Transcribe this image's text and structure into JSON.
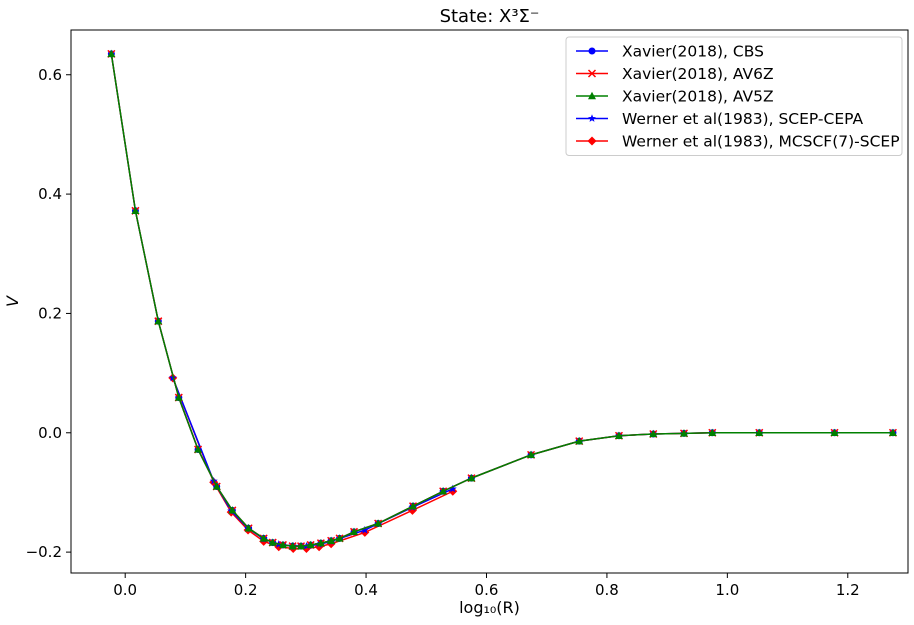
{
  "chart_data": {
    "type": "line",
    "title": "State: X³Σ⁻",
    "xlabel": "log₁₀(R)",
    "ylabel": "V",
    "xlim": [
      -0.09,
      1.3
    ],
    "ylim": [
      -0.235,
      0.675
    ],
    "xticks": [
      0.0,
      0.2,
      0.4,
      0.6,
      0.8,
      1.0,
      1.2
    ],
    "xtick_labels": [
      "0.0",
      "0.2",
      "0.4",
      "0.6",
      "0.8",
      "1.0",
      "1.2"
    ],
    "yticks": [
      -0.2,
      0.0,
      0.2,
      0.4,
      0.6
    ],
    "ytick_labels": [
      "−0.2",
      "0.0",
      "0.2",
      "0.4",
      "0.6"
    ],
    "grid": false,
    "legend_position": "top-right",
    "series": [
      {
        "name": "Xavier(2018), CBS",
        "color": "#0000ff",
        "marker": "circle",
        "x": [
          -0.023,
          0.017,
          0.055,
          0.089,
          0.121,
          0.152,
          0.178,
          0.205,
          0.23,
          0.245,
          0.262,
          0.278,
          0.292,
          0.308,
          0.325,
          0.342,
          0.356,
          0.38,
          0.42,
          0.478,
          0.528,
          0.575,
          0.674,
          0.754,
          0.82,
          0.877,
          0.928,
          0.975,
          1.053,
          1.178,
          1.275
        ],
        "y": [
          0.635,
          0.372,
          0.187,
          0.059,
          -0.028,
          -0.09,
          -0.13,
          -0.16,
          -0.177,
          -0.184,
          -0.188,
          -0.19,
          -0.19,
          -0.188,
          -0.185,
          -0.181,
          -0.177,
          -0.166,
          -0.152,
          -0.123,
          -0.098,
          -0.076,
          -0.037,
          -0.014,
          -0.005,
          -0.002,
          -0.001,
          0.0,
          0.0,
          0.0,
          0.0
        ]
      },
      {
        "name": "Xavier(2018), AV6Z",
        "color": "#ff0000",
        "marker": "x",
        "x": [
          -0.023,
          0.017,
          0.055,
          0.089,
          0.121,
          0.152,
          0.178,
          0.205,
          0.23,
          0.245,
          0.262,
          0.278,
          0.292,
          0.308,
          0.325,
          0.342,
          0.356,
          0.38,
          0.42,
          0.478,
          0.528,
          0.575,
          0.674,
          0.754,
          0.82,
          0.877,
          0.928,
          0.975,
          1.053,
          1.178,
          1.275
        ],
        "y": [
          0.635,
          0.372,
          0.187,
          0.059,
          -0.028,
          -0.09,
          -0.13,
          -0.16,
          -0.177,
          -0.184,
          -0.188,
          -0.19,
          -0.19,
          -0.188,
          -0.185,
          -0.181,
          -0.177,
          -0.166,
          -0.152,
          -0.123,
          -0.098,
          -0.076,
          -0.037,
          -0.014,
          -0.005,
          -0.002,
          -0.001,
          0.0,
          0.0,
          0.0,
          0.0
        ]
      },
      {
        "name": "Xavier(2018), AV5Z",
        "color": "#008000",
        "marker": "triangle",
        "x": [
          -0.023,
          0.017,
          0.055,
          0.089,
          0.121,
          0.152,
          0.178,
          0.205,
          0.23,
          0.245,
          0.262,
          0.278,
          0.292,
          0.308,
          0.325,
          0.342,
          0.356,
          0.38,
          0.42,
          0.478,
          0.528,
          0.575,
          0.674,
          0.754,
          0.82,
          0.877,
          0.928,
          0.975,
          1.053,
          1.178,
          1.275
        ],
        "y": [
          0.635,
          0.372,
          0.187,
          0.059,
          -0.028,
          -0.09,
          -0.13,
          -0.16,
          -0.177,
          -0.184,
          -0.188,
          -0.19,
          -0.19,
          -0.188,
          -0.185,
          -0.181,
          -0.177,
          -0.166,
          -0.152,
          -0.123,
          -0.098,
          -0.076,
          -0.037,
          -0.014,
          -0.005,
          -0.002,
          -0.001,
          0.0,
          0.0,
          0.0,
          0.0
        ]
      },
      {
        "name": "Werner et al(1983), SCEP-CEPA",
        "color": "#0000ff",
        "marker": "star",
        "x": [
          0.079,
          0.147,
          0.176,
          0.204,
          0.23,
          0.255,
          0.279,
          0.301,
          0.322,
          0.342,
          0.398,
          0.477,
          0.544
        ],
        "y": [
          0.092,
          -0.081,
          -0.131,
          -0.16,
          -0.178,
          -0.187,
          -0.19,
          -0.19,
          -0.187,
          -0.182,
          -0.163,
          -0.125,
          -0.094
        ]
      },
      {
        "name": "Werner et al(1983), MCSCF(7)-SCEP",
        "color": "#ff0000",
        "marker": "diamond",
        "x": [
          0.079,
          0.147,
          0.176,
          0.204,
          0.23,
          0.255,
          0.279,
          0.301,
          0.322,
          0.342,
          0.398,
          0.477,
          0.544
        ],
        "y": [
          0.092,
          -0.083,
          -0.133,
          -0.163,
          -0.182,
          -0.191,
          -0.194,
          -0.194,
          -0.191,
          -0.186,
          -0.167,
          -0.13,
          -0.098
        ]
      }
    ]
  }
}
